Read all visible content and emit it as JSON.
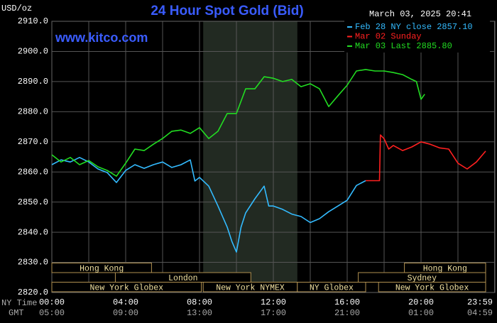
{
  "chart_data": {
    "type": "line",
    "title": "24 Hour Spot Gold (Bid)",
    "unit_label": "USD/oz",
    "timestamp": "March 03, 2025 20:41",
    "watermark": "www.kitco.com",
    "x_row_labels": [
      "NY Time",
      "GMT"
    ],
    "xlim": [
      0,
      24
    ],
    "ylim": [
      2820,
      2910
    ],
    "yticks": [
      {
        "value": 2820,
        "label": "2820.0"
      },
      {
        "value": 2830,
        "label": "2830.0"
      },
      {
        "value": 2840,
        "label": "2840.0"
      },
      {
        "value": 2850,
        "label": "2850.0"
      },
      {
        "value": 2860,
        "label": "2860.0"
      },
      {
        "value": 2870,
        "label": "2870.0"
      },
      {
        "value": 2880,
        "label": "2880.0"
      },
      {
        "value": 2890,
        "label": "2890.0"
      },
      {
        "value": 2900,
        "label": "2900.0"
      },
      {
        "value": 2910,
        "label": "2910.0"
      }
    ],
    "xticks": [
      {
        "value": 0,
        "label": "00:00"
      },
      {
        "value": 2,
        "label": null
      },
      {
        "value": 4,
        "label": "04:00"
      },
      {
        "value": 6,
        "label": null
      },
      {
        "value": 8,
        "label": "08:00"
      },
      {
        "value": 10,
        "label": null
      },
      {
        "value": 12,
        "label": "12:00"
      },
      {
        "value": 14,
        "label": null
      },
      {
        "value": 16,
        "label": "16:00"
      },
      {
        "value": 18,
        "label": null
      },
      {
        "value": 20,
        "label": "20:00"
      },
      {
        "value": 22,
        "label": null
      },
      {
        "value": 23.98,
        "label": "23:59"
      }
    ],
    "gmt_labels": [
      "05:00",
      null,
      "09:00",
      null,
      "13:00",
      null,
      "17:00",
      null,
      "21:00",
      null,
      "01:00",
      null,
      "04:59"
    ],
    "grid": true,
    "highlight": {
      "start": 8.2,
      "end": 13.3
    },
    "session_rows": [
      [
        {
          "label": "Hong Kong",
          "start": 0,
          "end": 5.4
        },
        {
          "label": "Hong Kong",
          "start": 19.1,
          "end": 23.5
        }
      ],
      [
        {
          "label": "London",
          "start": 3.44,
          "end": 10.78
        },
        {
          "label": "Sydney",
          "start": 16.6,
          "end": 23.5
        }
      ],
      [
        {
          "label": "New York Globex",
          "start": 0,
          "end": 8.1
        },
        {
          "label": "New York NYMEX",
          "start": 8.2,
          "end": 13.3
        },
        {
          "label": "NY Globex",
          "start": 13.3,
          "end": 17
        },
        {
          "label": "New York Globex",
          "start": 17.7,
          "end": 23.5
        }
      ]
    ],
    "series": [
      {
        "name": "Feb 28 NY close 2857.10",
        "color": "#33bbff",
        "x": [
          0,
          0.5,
          1,
          1.5,
          2,
          2.5,
          3,
          3.5,
          4,
          4.5,
          5,
          5.5,
          6,
          6.5,
          7,
          7.5,
          7.75,
          8,
          8.5,
          9,
          9.5,
          9.75,
          10,
          10.25,
          10.5,
          11,
          11.5,
          11.75,
          12,
          12.5,
          13,
          13.5,
          14,
          14.5,
          15,
          15.5,
          16,
          16.5,
          17
        ],
        "values": [
          2862.4,
          2864,
          2863.3,
          2864.8,
          2863.3,
          2861,
          2859.8,
          2856.5,
          2860.5,
          2862.4,
          2861.2,
          2862.4,
          2863.3,
          2861.5,
          2862.4,
          2864,
          2857,
          2858.2,
          2855.3,
          2848.7,
          2841.7,
          2837,
          2833.4,
          2841.7,
          2846.4,
          2851.1,
          2855.3,
          2848.7,
          2848.7,
          2847.6,
          2846,
          2845.2,
          2843.2,
          2844.5,
          2846.8,
          2848.7,
          2850.6,
          2855.5,
          2857.1
        ]
      },
      {
        "name": "Mar 02 Sunday",
        "color": "#ff2020",
        "x": [
          17,
          17.75,
          17.8,
          18,
          18.25,
          18.5,
          19,
          19.5,
          20,
          20.5,
          21,
          21.5,
          22,
          22.5,
          23,
          23.5
        ],
        "values": [
          2857.1,
          2857.1,
          2872.3,
          2871,
          2867.6,
          2868.8,
          2867.1,
          2868.3,
          2870,
          2869.2,
          2868,
          2867.6,
          2862.9,
          2861,
          2863.3,
          2866.9
        ]
      },
      {
        "name": "Mar 03 Last 2885.80",
        "color": "#22dd22",
        "x": [
          0,
          0.5,
          1,
          1.5,
          2,
          2.5,
          3,
          3.5,
          4,
          4.5,
          5,
          5.5,
          6,
          6.5,
          7,
          7.5,
          8,
          8.5,
          9,
          9.5,
          10,
          10.5,
          11,
          11.5,
          12,
          12.5,
          13,
          13.5,
          14,
          14.5,
          15,
          15.5,
          16,
          16.5,
          17,
          17.5,
          18,
          18.5,
          19,
          19.5,
          19.75,
          20,
          20.2
        ],
        "values": [
          2865.7,
          2863.3,
          2864.8,
          2862.4,
          2863.8,
          2861.7,
          2860.5,
          2858.6,
          2862.9,
          2867.6,
          2867.1,
          2869.2,
          2871.1,
          2873.5,
          2873.9,
          2872.8,
          2874.7,
          2871.1,
          2873.5,
          2879.4,
          2879.4,
          2887.6,
          2887.6,
          2891.6,
          2891.1,
          2890,
          2890.7,
          2888.3,
          2889.3,
          2887.6,
          2881.7,
          2885.3,
          2888.8,
          2893.5,
          2894,
          2893.5,
          2893.5,
          2893,
          2892.3,
          2890.7,
          2890,
          2884.1,
          2885.8
        ]
      }
    ]
  }
}
